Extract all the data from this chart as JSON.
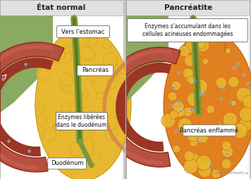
{
  "title_left": "État normal",
  "title_right": "Pancréatite",
  "label_stomach": "Vers l'estomac",
  "label_pancreas": "Pancréas",
  "label_enzymes_normal": "Enzymes libérées\ndans le duodénum",
  "label_duodenum": "Duodénum",
  "label_enzymes_inflamed": "Enzymes s'accumulant dans les\ncellules acineuses endommagées",
  "label_inflamed": "Pancréas enflammé",
  "watermark": "© AboutKidsHealth.ca",
  "bg_gray": "#d0d0d0",
  "panel_bg": "#ffffff",
  "header_bg": "#e0e0e0",
  "duo_outer_color": "#b85040",
  "duo_wall_color": "#c86858",
  "duo_inner_color": "#8b2a1a",
  "duo_channel_color": "#9b3525",
  "pancreas_normal_color": "#e8b830",
  "pancreas_normal_dark": "#c89810",
  "pancreas_inflamed_color": "#e08020",
  "pancreas_inflamed_dark": "#c06010",
  "green_bg": "#8aaa60",
  "green_duct": "#7a9a3a",
  "green_duct_dark": "#5a7a1a",
  "dot_color": "#5588cc",
  "callout_bg": "#ffffff",
  "callout_border": "#666666",
  "title_color": "#222222",
  "text_color": "#111111",
  "watermark_color": "#888888",
  "divider_color": "#aaaaaa"
}
